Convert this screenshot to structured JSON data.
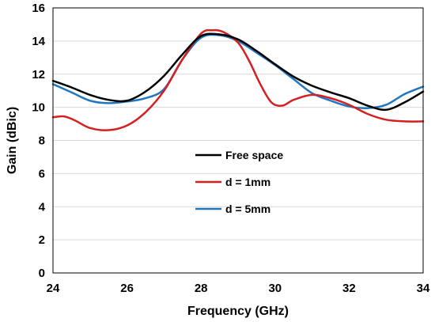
{
  "chart_data": {
    "type": "line",
    "title": "",
    "xlabel": "Frequency (GHz)",
    "ylabel": "Gain (dBic)",
    "xlim": [
      24,
      34
    ],
    "ylim": [
      0,
      16
    ],
    "xticks": [
      24,
      26,
      28,
      30,
      32,
      34
    ],
    "yticks": [
      0,
      2,
      4,
      6,
      8,
      10,
      12,
      14,
      16
    ],
    "grid": "horizontal",
    "legend_position": "center",
    "series": [
      {
        "name": "Free space",
        "color": "#000000",
        "x": [
          24,
          24.5,
          25,
          25.5,
          26,
          26.5,
          27,
          27.5,
          28,
          28.5,
          29,
          29.5,
          30,
          30.5,
          31,
          31.5,
          32,
          32.5,
          33,
          33.5,
          34
        ],
        "y": [
          11.6,
          11.2,
          10.75,
          10.45,
          10.4,
          10.95,
          11.9,
          13.2,
          14.3,
          14.4,
          14.1,
          13.4,
          12.6,
          11.85,
          11.3,
          10.9,
          10.55,
          10.1,
          9.85,
          10.3,
          10.95
        ]
      },
      {
        "name": "d = 1mm",
        "color": "#d42020",
        "x": [
          24,
          24.3,
          24.6,
          25,
          25.5,
          26,
          26.5,
          27,
          27.5,
          28,
          28.3,
          28.6,
          29,
          29.3,
          29.6,
          29.9,
          30.2,
          30.5,
          31,
          31.5,
          32,
          32.5,
          33,
          33.5,
          34
        ],
        "y": [
          9.4,
          9.45,
          9.2,
          8.75,
          8.62,
          8.9,
          9.7,
          11.0,
          12.9,
          14.45,
          14.65,
          14.55,
          13.9,
          12.8,
          11.4,
          10.3,
          10.1,
          10.45,
          10.75,
          10.55,
          10.15,
          9.6,
          9.25,
          9.15,
          9.15
        ]
      },
      {
        "name": "d = 5mm",
        "color": "#1f77c0",
        "x": [
          24,
          24.5,
          25,
          25.5,
          26,
          26.5,
          27,
          27.5,
          28,
          28.5,
          29,
          29.5,
          30,
          30.5,
          31,
          31.5,
          32,
          32.5,
          33,
          33.5,
          34
        ],
        "y": [
          11.4,
          10.9,
          10.4,
          10.25,
          10.35,
          10.55,
          11.1,
          12.9,
          14.2,
          14.35,
          14.0,
          13.3,
          12.55,
          11.7,
          10.85,
          10.4,
          10.05,
          9.95,
          10.15,
          10.8,
          11.25
        ]
      }
    ]
  }
}
